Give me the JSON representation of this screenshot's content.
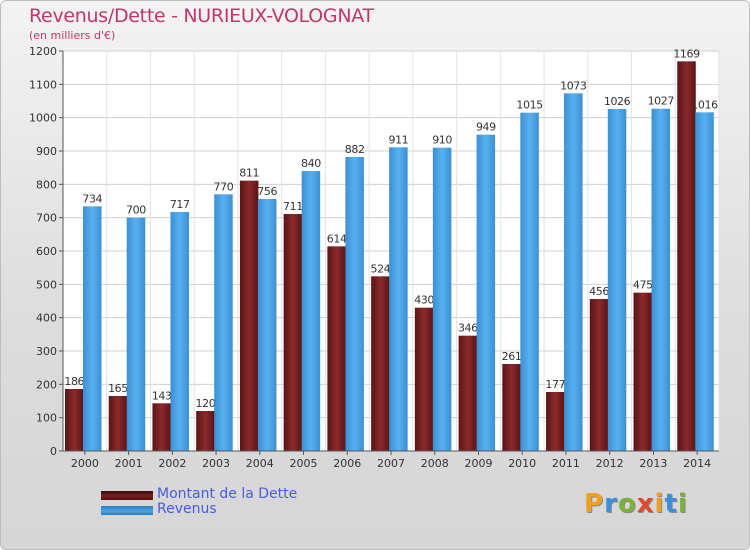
{
  "chart_data": {
    "type": "bar",
    "title": "Revenus/Dette - NURIEUX-VOLOGNAT",
    "subtitle": "(en milliers d'€)",
    "categories": [
      "2000",
      "2001",
      "2002",
      "2003",
      "2004",
      "2005",
      "2006",
      "2007",
      "2008",
      "2009",
      "2010",
      "2011",
      "2012",
      "2013",
      "2014"
    ],
    "series": [
      {
        "name": "Montant de la Dette",
        "color": "#7a1f22",
        "values": [
          186,
          165,
          143,
          120,
          811,
          711,
          614,
          524,
          430,
          346,
          261,
          177,
          456,
          475,
          1169
        ]
      },
      {
        "name": "Revenus",
        "color": "#4aa3e6",
        "values": [
          734,
          700,
          717,
          770,
          756,
          840,
          882,
          911,
          910,
          949,
          1015,
          1073,
          1026,
          1027,
          1016
        ]
      }
    ],
    "yticks": [
      0,
      100,
      200,
      300,
      400,
      500,
      600,
      700,
      800,
      900,
      1000,
      1100,
      1200
    ],
    "ylim": [
      0,
      1200
    ],
    "grid": true,
    "legend_position": "bottom-left"
  },
  "legend": {
    "items": [
      {
        "label": "Montant de la Dette",
        "color": "#7a1f22"
      },
      {
        "label": "Revenus",
        "color": "#4aa3e6"
      }
    ]
  },
  "logo": {
    "letters": [
      "P",
      "r",
      "o",
      "x",
      "i",
      "t",
      "i"
    ],
    "colors": [
      "#f0a020",
      "#3a8fd8",
      "#7ab23c",
      "#e04a2a",
      "#f0a020",
      "#3a8fd8",
      "#7ab23c"
    ]
  }
}
